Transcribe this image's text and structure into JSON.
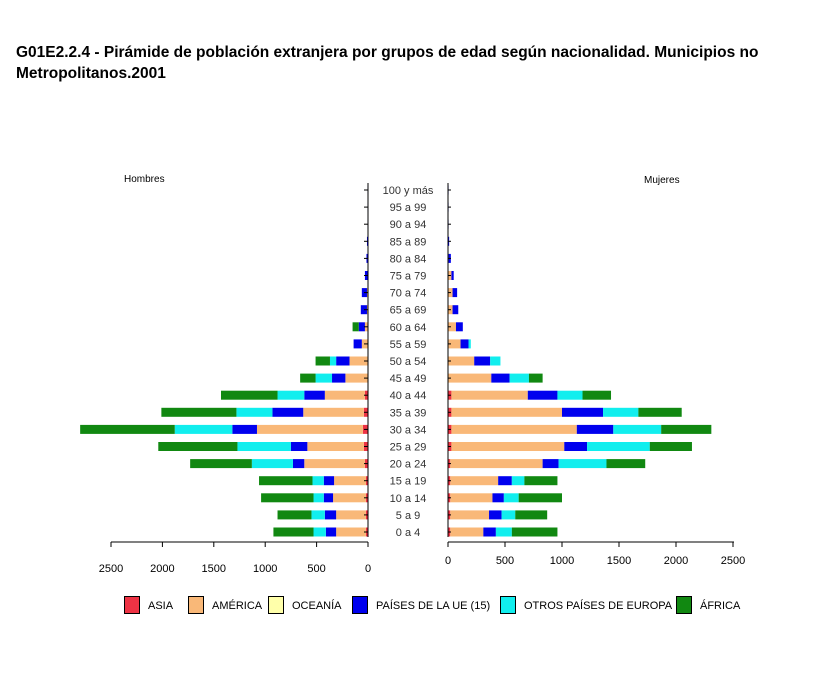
{
  "title": "G01E2.2.4 - Pirámide de población extranjera por grupos de edad según nacionalidad. Municipios no Metropolitanos.2001",
  "chart_data": {
    "type": "bar",
    "orientation": "horizontal-population-pyramid",
    "left_panel_label": "Hombres",
    "right_panel_label": "Mujeres",
    "categories": [
      "100 y más",
      "95 a 99",
      "90 a 94",
      "85 a 89",
      "80 a 84",
      "75 a 79",
      "70 a 74",
      "65 a 69",
      "60 a 64",
      "55 a 59",
      "50 a 54",
      "45 a 49",
      "40 a 44",
      "35 a 39",
      "30 a 34",
      "25 a 29",
      "20 a 24",
      "15 a 19",
      "10 a 14",
      "5 a 9",
      "0 a 4"
    ],
    "left_ticks": [
      2500,
      2000,
      1500,
      1000,
      500,
      0
    ],
    "right_ticks": [
      0,
      500,
      1000,
      1500,
      2000,
      2500
    ],
    "xlim": [
      0,
      2500
    ],
    "series": [
      {
        "name": "ASIA",
        "color": "#ee3344",
        "hombres": [
          0,
          0,
          0,
          0,
          0,
          0,
          0,
          0,
          0,
          0,
          0,
          0,
          30,
          40,
          50,
          40,
          30,
          20,
          20,
          20,
          20
        ],
        "mujeres": [
          0,
          0,
          0,
          0,
          0,
          0,
          0,
          0,
          0,
          0,
          0,
          0,
          30,
          30,
          30,
          30,
          20,
          20,
          20,
          20,
          20
        ]
      },
      {
        "name": "AMÉRICA",
        "color": "#f9b878",
        "hombres": [
          0,
          0,
          0,
          0,
          0,
          0,
          10,
          10,
          30,
          60,
          180,
          220,
          390,
          590,
          1030,
          550,
          590,
          310,
          320,
          290,
          290
        ],
        "mujeres": [
          0,
          0,
          0,
          0,
          5,
          30,
          40,
          40,
          70,
          110,
          230,
          380,
          670,
          970,
          1100,
          990,
          810,
          420,
          370,
          340,
          290
        ]
      },
      {
        "name": "OCEANÍA",
        "color": "#ffffaa",
        "hombres": [
          0,
          0,
          0,
          0,
          0,
          0,
          0,
          0,
          0,
          0,
          0,
          0,
          0,
          0,
          0,
          0,
          0,
          0,
          0,
          0,
          0
        ],
        "mujeres": [
          0,
          0,
          0,
          0,
          0,
          0,
          0,
          0,
          0,
          0,
          0,
          0,
          0,
          0,
          0,
          0,
          0,
          0,
          0,
          0,
          0
        ]
      },
      {
        "name": "PAÍSES DE LA UE (15)",
        "color": "#0000ee",
        "hombres": [
          5,
          5,
          5,
          10,
          15,
          30,
          50,
          60,
          60,
          80,
          130,
          130,
          200,
          300,
          240,
          160,
          110,
          100,
          90,
          110,
          100
        ],
        "mujeres": [
          5,
          5,
          5,
          10,
          20,
          20,
          40,
          50,
          60,
          70,
          140,
          160,
          260,
          360,
          320,
          200,
          140,
          120,
          100,
          110,
          110
        ]
      },
      {
        "name": "OTROS PAÍSES DE EUROPA",
        "color": "#11eeee",
        "hombres": [
          0,
          0,
          0,
          0,
          0,
          0,
          0,
          0,
          0,
          0,
          60,
          160,
          260,
          350,
          560,
          520,
          400,
          110,
          100,
          130,
          120
        ],
        "mujeres": [
          0,
          0,
          0,
          0,
          0,
          0,
          0,
          0,
          0,
          20,
          90,
          170,
          220,
          310,
          420,
          550,
          420,
          110,
          130,
          120,
          140
        ]
      },
      {
        "name": "ÁFRICA",
        "color": "#118811",
        "hombres": [
          0,
          0,
          0,
          0,
          0,
          0,
          0,
          0,
          60,
          0,
          140,
          150,
          550,
          730,
          920,
          770,
          600,
          520,
          510,
          330,
          390
        ],
        "mujeres": [
          0,
          0,
          0,
          0,
          0,
          0,
          0,
          0,
          0,
          0,
          0,
          120,
          250,
          380,
          440,
          370,
          340,
          290,
          380,
          280,
          400
        ]
      }
    ]
  },
  "legend_title": ""
}
